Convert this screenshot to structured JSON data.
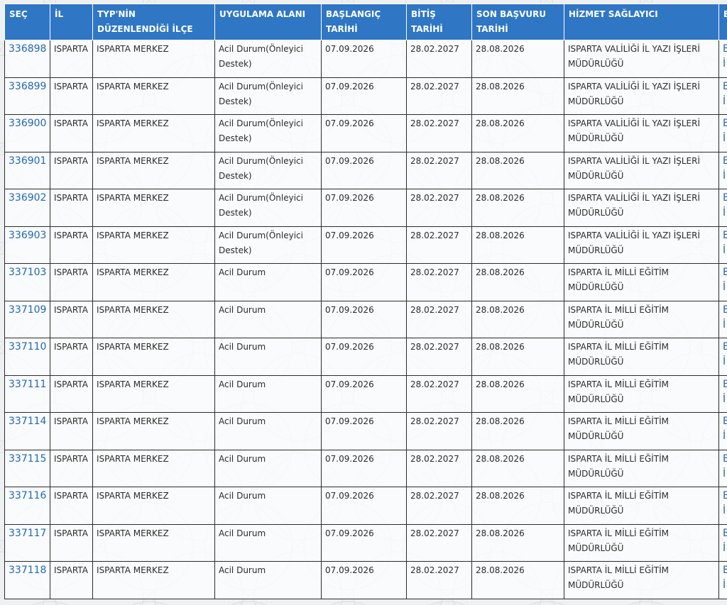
{
  "headers": {
    "sec": "SEÇ",
    "il": "İL",
    "ilce": "TYP'NİN DÜZENLENDİĞİ İLÇE",
    "alan": "UYGULAMA ALANI",
    "baslangic": "BAŞLANGIÇ TARİHİ",
    "bitis": "BİTİŞ TARİHİ",
    "son_basvuru": "SON BAŞVURU TARİHİ",
    "saglayici": "HİZMET SAĞLAYICI",
    "extra": "B"
  },
  "rows": [
    {
      "id": "336898",
      "il": "ISPARTA",
      "ilce": "ISPARTA MERKEZ",
      "alan": "Acil Durum(Önleyici Destek)",
      "baslangic": "07.09.2026",
      "bitis": "28.02.2027",
      "son": "28.08.2026",
      "saglayici": "ISPARTA VALİLİĞİ İL YAZI İŞLERİ MÜDÜRLÜĞÜ",
      "extra1": "B",
      "extra2": "İ"
    },
    {
      "id": "336899",
      "il": "ISPARTA",
      "ilce": "ISPARTA MERKEZ",
      "alan": "Acil Durum(Önleyici Destek)",
      "baslangic": "07.09.2026",
      "bitis": "28.02.2027",
      "son": "28.08.2026",
      "saglayici": "ISPARTA VALİLİĞİ İL YAZI İŞLERİ MÜDÜRLÜĞÜ",
      "extra1": "B",
      "extra2": "İ"
    },
    {
      "id": "336900",
      "il": "ISPARTA",
      "ilce": "ISPARTA MERKEZ",
      "alan": "Acil Durum(Önleyici Destek)",
      "baslangic": "07.09.2026",
      "bitis": "28.02.2027",
      "son": "28.08.2026",
      "saglayici": "ISPARTA VALİLİĞİ İL YAZI İŞLERİ MÜDÜRLÜĞÜ",
      "extra1": "B",
      "extra2": "İ"
    },
    {
      "id": "336901",
      "il": "ISPARTA",
      "ilce": "ISPARTA MERKEZ",
      "alan": "Acil Durum(Önleyici Destek)",
      "baslangic": "07.09.2026",
      "bitis": "28.02.2027",
      "son": "28.08.2026",
      "saglayici": "ISPARTA VALİLİĞİ İL YAZI İŞLERİ MÜDÜRLÜĞÜ",
      "extra1": "B",
      "extra2": "İ"
    },
    {
      "id": "336902",
      "il": "ISPARTA",
      "ilce": "ISPARTA MERKEZ",
      "alan": "Acil Durum(Önleyici Destek)",
      "baslangic": "07.09.2026",
      "bitis": "28.02.2027",
      "son": "28.08.2026",
      "saglayici": "ISPARTA VALİLİĞİ İL YAZI İŞLERİ MÜDÜRLÜĞÜ",
      "extra1": "B",
      "extra2": "İ"
    },
    {
      "id": "336903",
      "il": "ISPARTA",
      "ilce": "ISPARTA MERKEZ",
      "alan": "Acil Durum(Önleyici Destek)",
      "baslangic": "07.09.2026",
      "bitis": "28.02.2027",
      "son": "28.08.2026",
      "saglayici": "ISPARTA VALİLİĞİ İL YAZI İŞLERİ MÜDÜRLÜĞÜ",
      "extra1": "B",
      "extra2": "İ"
    },
    {
      "id": "337103",
      "il": "ISPARTA",
      "ilce": "ISPARTA MERKEZ",
      "alan": "Acil Durum",
      "baslangic": "07.09.2026",
      "bitis": "28.02.2027",
      "son": "28.08.2026",
      "saglayici": "ISPARTA İL MİLLİ EĞİTİM MÜDÜRLÜĞÜ",
      "extra1": "B",
      "extra2": "İ"
    },
    {
      "id": "337109",
      "il": "ISPARTA",
      "ilce": "ISPARTA MERKEZ",
      "alan": "Acil Durum",
      "baslangic": "07.09.2026",
      "bitis": "28.02.2027",
      "son": "28.08.2026",
      "saglayici": "ISPARTA İL MİLLİ EĞİTİM MÜDÜRLÜĞÜ",
      "extra1": "B",
      "extra2": "İ"
    },
    {
      "id": "337110",
      "il": "ISPARTA",
      "ilce": "ISPARTA MERKEZ",
      "alan": "Acil Durum",
      "baslangic": "07.09.2026",
      "bitis": "28.02.2027",
      "son": "28.08.2026",
      "saglayici": "ISPARTA İL MİLLİ EĞİTİM MÜDÜRLÜĞÜ",
      "extra1": "B",
      "extra2": "İ"
    },
    {
      "id": "337111",
      "il": "ISPARTA",
      "ilce": "ISPARTA MERKEZ",
      "alan": "Acil Durum",
      "baslangic": "07.09.2026",
      "bitis": "28.02.2027",
      "son": "28.08.2026",
      "saglayici": "ISPARTA İL MİLLİ EĞİTİM MÜDÜRLÜĞÜ",
      "extra1": "B",
      "extra2": "İ"
    },
    {
      "id": "337114",
      "il": "ISPARTA",
      "ilce": "ISPARTA MERKEZ",
      "alan": "Acil Durum",
      "baslangic": "07.09.2026",
      "bitis": "28.02.2027",
      "son": "28.08.2026",
      "saglayici": "ISPARTA İL MİLLİ EĞİTİM MÜDÜRLÜĞÜ",
      "extra1": "B",
      "extra2": "İ"
    },
    {
      "id": "337115",
      "il": "ISPARTA",
      "ilce": "ISPARTA MERKEZ",
      "alan": "Acil Durum",
      "baslangic": "07.09.2026",
      "bitis": "28.02.2027",
      "son": "28.08.2026",
      "saglayici": "ISPARTA İL MİLLİ EĞİTİM MÜDÜRLÜĞÜ",
      "extra1": "B",
      "extra2": "İ"
    },
    {
      "id": "337116",
      "il": "ISPARTA",
      "ilce": "ISPARTA MERKEZ",
      "alan": "Acil Durum",
      "baslangic": "07.09.2026",
      "bitis": "28.02.2027",
      "son": "28.08.2026",
      "saglayici": "ISPARTA İL MİLLİ EĞİTİM MÜDÜRLÜĞÜ",
      "extra1": "B",
      "extra2": "İ"
    },
    {
      "id": "337117",
      "il": "ISPARTA",
      "ilce": "ISPARTA MERKEZ",
      "alan": "Acil Durum",
      "baslangic": "07.09.2026",
      "bitis": "28.02.2027",
      "son": "28.08.2026",
      "saglayici": "ISPARTA İL MİLLİ EĞİTİM MÜDÜRLÜĞÜ",
      "extra1": "B",
      "extra2": "İ"
    },
    {
      "id": "337118",
      "il": "ISPARTA",
      "ilce": "ISPARTA MERKEZ",
      "alan": "Acil Durum",
      "baslangic": "07.09.2026",
      "bitis": "28.02.2027",
      "son": "28.08.2026",
      "saglayici": "ISPARTA İL MİLLİ EĞİTİM MÜDÜRLÜĞÜ",
      "extra1": "B",
      "extra2": "İ"
    }
  ],
  "colors": {
    "header_bg": "#2f76c4",
    "link": "#1f68b5",
    "border": "#2b2b2b"
  }
}
